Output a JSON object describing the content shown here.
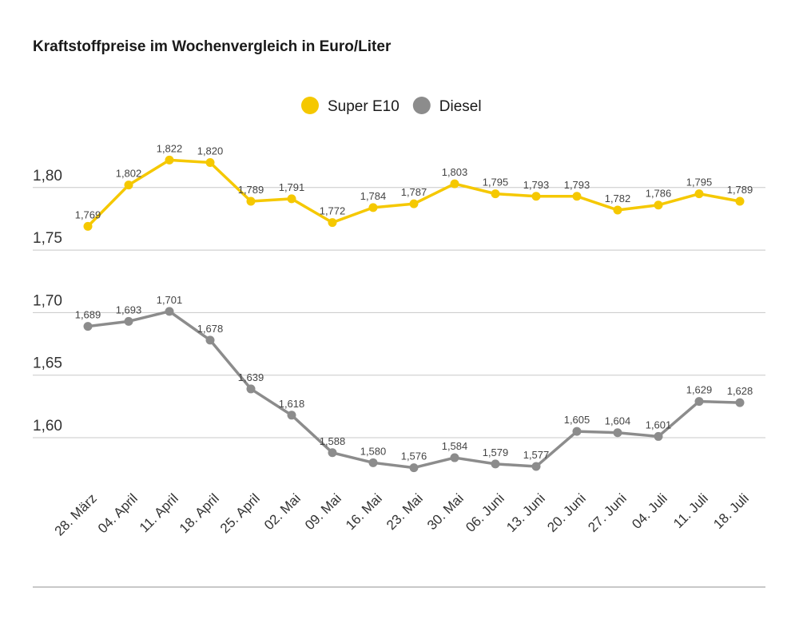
{
  "chart_data": {
    "type": "line",
    "title": "Kraftstoffpreise im Wochenvergleich in Euro/Liter",
    "xlabel": "",
    "ylabel": "",
    "ylim": [
      1.57,
      1.83
    ],
    "yticks": [
      "1,60",
      "1,65",
      "1,70",
      "1,75",
      "1,80"
    ],
    "ytick_values": [
      1.6,
      1.65,
      1.7,
      1.75,
      1.8
    ],
    "grid": true,
    "legend_position": "top-center",
    "categories": [
      "28. März",
      "04. April",
      "11. April",
      "18. April",
      "25. April",
      "02. Mai",
      "09. Mai",
      "16. Mai",
      "23. Mai",
      "30. Mai",
      "06. Juni",
      "13. Juni",
      "20. Juni",
      "27. Juni",
      "04. Juli",
      "11. Juli",
      "18. Juli"
    ],
    "series": [
      {
        "name": "Super E10",
        "color": "#f5c800",
        "values": [
          1.769,
          1.802,
          1.822,
          1.82,
          1.789,
          1.791,
          1.772,
          1.784,
          1.787,
          1.803,
          1.795,
          1.793,
          1.793,
          1.782,
          1.786,
          1.795,
          1.789
        ],
        "labels": [
          "1,769",
          "1,802",
          "1,822",
          "1,820",
          "1,789",
          "1,791",
          "1,772",
          "1,784",
          "1,787",
          "1,803",
          "1,795",
          "1,793",
          "1,793",
          "1,782",
          "1,786",
          "1,795",
          "1,789"
        ]
      },
      {
        "name": "Diesel",
        "color": "#8c8c8c",
        "values": [
          1.689,
          1.693,
          1.701,
          1.678,
          1.639,
          1.618,
          1.588,
          1.58,
          1.576,
          1.584,
          1.579,
          1.577,
          1.605,
          1.604,
          1.601,
          1.629,
          1.628
        ],
        "labels": [
          "1,689",
          "1,693",
          "1,701",
          "1,678",
          "1,639",
          "1,618",
          "1,588",
          "1,580",
          "1,576",
          "1,584",
          "1,579",
          "1,577",
          "1,605",
          "1,604",
          "1,601",
          "1,629",
          "1,628"
        ]
      }
    ]
  }
}
